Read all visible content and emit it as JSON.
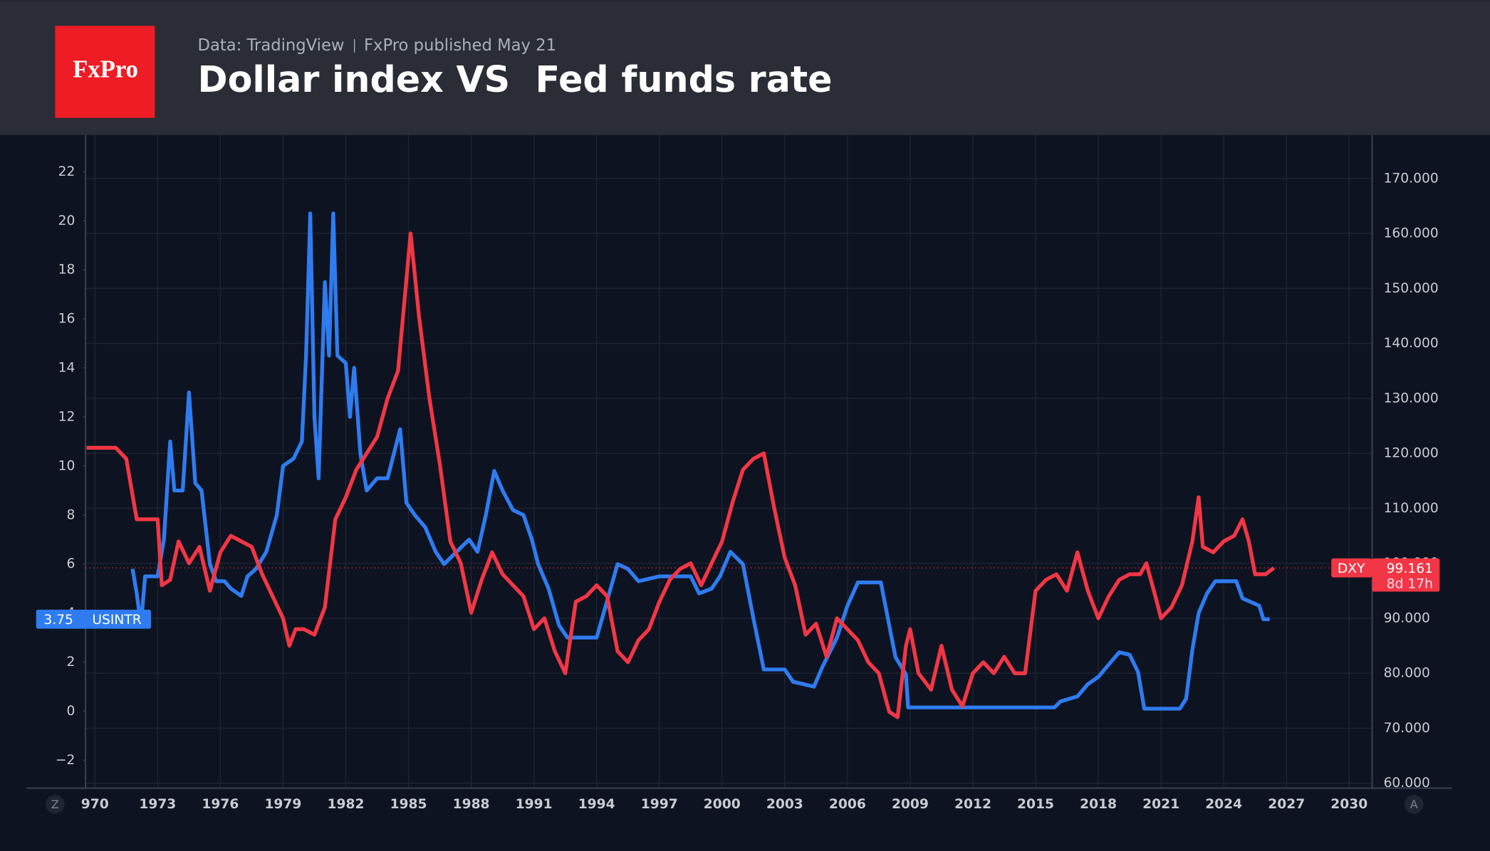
{
  "header": {
    "logo": "FxPro",
    "source": "Data: TradingView",
    "publisher": "FxPro published May 21"
  },
  "chart_data": {
    "type": "line",
    "title": "Dollar index VS  Fed funds rate",
    "grid": true,
    "xlim": [
      1969.55,
      2031.1
    ],
    "xticks": [
      {
        "value": 1970,
        "label": "970"
      },
      1973,
      1976,
      1979,
      1982,
      1985,
      1988,
      1991,
      1994,
      1997,
      2000,
      2003,
      2006,
      2009,
      2012,
      2015,
      2018,
      2021,
      2024,
      2027,
      2030
    ],
    "ylim": [
      -3.14,
      23.5
    ],
    "yticks": [
      {
        "value": -2,
        "label": "−2"
      },
      0,
      2,
      4,
      6,
      8,
      10,
      12,
      14,
      16,
      18,
      20,
      22
    ],
    "y2lim": [
      59.1,
      177.9
    ],
    "y2ticks": [
      {
        "value": 60,
        "label": "60.000"
      },
      {
        "value": 70,
        "label": "70.000"
      },
      {
        "value": 80,
        "label": "80.000"
      },
      {
        "value": 90,
        "label": "90.000"
      },
      {
        "value": 100,
        "label": "100.000"
      },
      {
        "value": 110,
        "label": "110.000"
      },
      {
        "value": 120,
        "label": "120.000"
      },
      {
        "value": 130,
        "label": "130.000"
      },
      {
        "value": 140,
        "label": "140.000"
      },
      {
        "value": 150,
        "label": "150.000"
      },
      {
        "value": 160,
        "label": "160.000"
      },
      {
        "value": 170,
        "label": "170.000"
      }
    ],
    "series": [
      {
        "name": "USINTR",
        "color": "#2f7bf0",
        "x": [
          1971.8,
          1972.0,
          1972.2,
          1972.4,
          1973.0,
          1973.3,
          1973.6,
          1973.8,
          1974.2,
          1974.5,
          1974.8,
          1975.1,
          1975.5,
          1975.8,
          1976.2,
          1976.5,
          1977.0,
          1977.3,
          1977.7,
          1978.2,
          1978.7,
          1979.0,
          1979.5,
          1979.9,
          1980.1,
          1980.3,
          1980.5,
          1980.7,
          1981.0,
          1981.2,
          1981.4,
          1981.6,
          1982.0,
          1982.2,
          1982.4,
          1982.7,
          1983.0,
          1983.5,
          1984.0,
          1984.6,
          1984.9,
          1985.3,
          1985.8,
          1986.3,
          1986.7,
          1987.3,
          1987.9,
          1988.3,
          1988.7,
          1989.1,
          1989.5,
          1990.0,
          1990.5,
          1990.9,
          1991.2,
          1991.7,
          1992.2,
          1992.6,
          1993.5,
          1994.0,
          1994.5,
          1995.0,
          1995.5,
          1996.0,
          1997.0,
          1998.5,
          1998.9,
          1999.5,
          1999.9,
          2000.4,
          2001.0,
          2001.5,
          2002.0,
          2003.0,
          2003.4,
          2004.4,
          2004.8,
          2005.5,
          2006.0,
          2006.5,
          2007.6,
          2008.0,
          2008.3,
          2008.8,
          2008.9,
          2015.9,
          2016.2,
          2017.0,
          2017.5,
          2018.0,
          2018.5,
          2019.0,
          2019.5,
          2019.9,
          2020.2,
          2021.9,
          2022.2,
          2022.5,
          2022.8,
          2023.2,
          2023.6,
          2024.6,
          2024.9,
          2025.7,
          2025.9,
          2026.2
        ],
        "values": [
          5.8,
          4.8,
          3.5,
          5.5,
          5.5,
          7,
          11,
          9,
          9,
          13,
          9.3,
          9,
          6,
          5.3,
          5.3,
          5,
          4.7,
          5.5,
          5.8,
          6.5,
          8,
          10,
          10.3,
          11,
          14.5,
          20.3,
          12,
          9.5,
          17.5,
          14.5,
          20.3,
          14.5,
          14.2,
          12,
          14,
          10.5,
          9,
          9.5,
          9.5,
          11.5,
          8.5,
          8,
          7.5,
          6.5,
          6,
          6.5,
          7,
          6.5,
          8,
          9.8,
          9,
          8.2,
          8,
          7,
          6,
          5,
          3.5,
          3,
          3,
          3,
          4.5,
          6,
          5.8,
          5.3,
          5.5,
          5.5,
          4.8,
          5,
          5.5,
          6.5,
          6,
          3.8,
          1.7,
          1.7,
          1.2,
          1,
          1.8,
          3,
          4.3,
          5.25,
          5.25,
          3.5,
          2.2,
          1.5,
          0.15,
          0.15,
          0.4,
          0.6,
          1.1,
          1.4,
          1.9,
          2.4,
          2.3,
          1.6,
          0.1,
          0.1,
          0.5,
          2.5,
          4,
          4.8,
          5.3,
          5.3,
          4.6,
          4.3,
          3.75,
          3.75
        ]
      },
      {
        "name": "DXY",
        "color": "#f23645",
        "axis": "y2",
        "countdown": "8d 17h",
        "x": [
          1969.6,
          1971.0,
          1971.5,
          1972.0,
          1973.0,
          1973.2,
          1973.6,
          1974.0,
          1974.5,
          1975.0,
          1975.5,
          1976.0,
          1976.5,
          1977.0,
          1977.5,
          1978.0,
          1978.5,
          1979.0,
          1979.3,
          1979.6,
          1980.0,
          1980.5,
          1981.0,
          1981.5,
          1982.0,
          1982.5,
          1983.0,
          1983.5,
          1984.0,
          1984.5,
          1985.1,
          1985.5,
          1986.0,
          1986.5,
          1987.0,
          1987.5,
          1988.0,
          1988.5,
          1989.0,
          1989.5,
          1990.0,
          1990.5,
          1991.0,
          1991.5,
          1992.0,
          1992.5,
          1993.0,
          1993.5,
          1994.0,
          1994.5,
          1995.0,
          1995.5,
          1996.0,
          1996.5,
          1997.0,
          1997.5,
          1998.0,
          1998.5,
          1999.0,
          1999.5,
          2000.0,
          2000.5,
          2001.0,
          2001.5,
          2002.0,
          2002.5,
          2003.0,
          2003.5,
          2004.0,
          2004.5,
          2005.0,
          2005.5,
          2006.0,
          2006.5,
          2007.0,
          2007.5,
          2008.0,
          2008.4,
          2008.8,
          2009.0,
          2009.4,
          2010.0,
          2010.5,
          2011.0,
          2011.5,
          2012.0,
          2012.5,
          2013.0,
          2013.5,
          2014.0,
          2014.5,
          2015.0,
          2015.5,
          2016.0,
          2016.5,
          2017.0,
          2017.5,
          2018.0,
          2018.5,
          2019.0,
          2019.5,
          2020.0,
          2020.3,
          2020.8,
          2021.0,
          2021.5,
          2022.0,
          2022.5,
          2022.8,
          2023.0,
          2023.5,
          2024.0,
          2024.5,
          2024.9,
          2025.2,
          2025.5,
          2026.0,
          2026.4
        ],
        "values": [
          121,
          121,
          119,
          108,
          108,
          96,
          97,
          104,
          100,
          103,
          95,
          102,
          105,
          104,
          103,
          98,
          94,
          90,
          85,
          88,
          88,
          87,
          92,
          108,
          112,
          117,
          120,
          123,
          130,
          135,
          160,
          145,
          130,
          118,
          104,
          100,
          91,
          97,
          102,
          98,
          96,
          94,
          88,
          90,
          84,
          80,
          93,
          94,
          96,
          94,
          84,
          82,
          86,
          88,
          93,
          97,
          99,
          100,
          96,
          100,
          104,
          111,
          117,
          119,
          120,
          110,
          101,
          96,
          87,
          89,
          83,
          90,
          88,
          86,
          82,
          80,
          73,
          72,
          85,
          88,
          80,
          77,
          85,
          77,
          74,
          80,
          82,
          80,
          83,
          80,
          80,
          95,
          97,
          98,
          95,
          102,
          95,
          90,
          94,
          97,
          98,
          98,
          100,
          93,
          90,
          92,
          96,
          104,
          112,
          103,
          102,
          104,
          105,
          108,
          104,
          98,
          98,
          99.161
        ]
      }
    ],
    "controls": [
      "Z",
      "A"
    ]
  }
}
